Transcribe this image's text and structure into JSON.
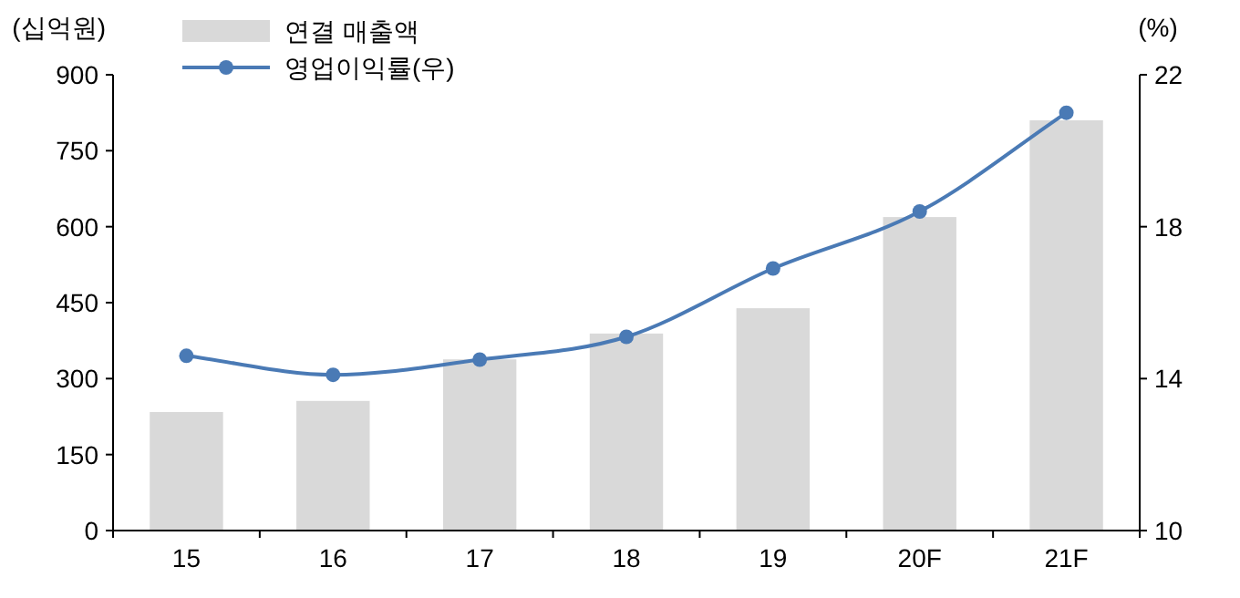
{
  "chart_data": {
    "type": "bar",
    "ylabel": "(십억원)",
    "y2label": "(%)",
    "categories": [
      "15",
      "16",
      "17",
      "18",
      "19",
      "20F",
      "21F"
    ],
    "series": [
      {
        "name": "연결 매출액",
        "color": "#d9d9d9",
        "values": [
          234,
          256,
          338,
          389,
          439,
          619,
          810
        ]
      },
      {
        "name": "영업이익률(우)",
        "type": "line",
        "axis": "y2",
        "color": "#4a7ab5",
        "values": [
          14.6,
          14.1,
          14.5,
          15.1,
          16.9,
          18.4,
          21.0
        ]
      }
    ],
    "ylim": [
      0,
      900
    ],
    "yticks": [
      0,
      150,
      300,
      450,
      600,
      750,
      900
    ],
    "y2lim": [
      10,
      22
    ],
    "y2ticks": [
      10,
      14,
      18,
      22
    ],
    "legend": "top left",
    "marker": "circle",
    "grid": false
  }
}
